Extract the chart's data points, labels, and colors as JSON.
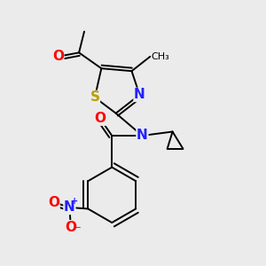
{
  "background_color": "#ebebeb",
  "fig_size": [
    3.0,
    3.0
  ],
  "dpi": 100,
  "atom_colors": {
    "S": "#b8a000",
    "N": "#2020ff",
    "O": "#ff0000",
    "C": "#000000"
  }
}
